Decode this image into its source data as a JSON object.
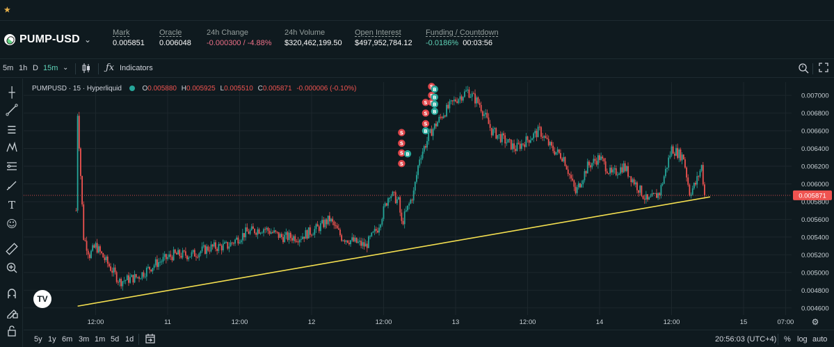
{
  "topbar": {
    "favorites_icon": "star-icon"
  },
  "market": {
    "coin": "PUMP-USD",
    "stats": [
      {
        "label": "Mark",
        "value": "0.005851",
        "tone": "normal"
      },
      {
        "label": "Oracle",
        "value": "0.006048",
        "tone": "normal"
      },
      {
        "label": "24h Change",
        "value": "-0.000300 / -4.88%",
        "tone": "neg"
      },
      {
        "label": "24h Volume",
        "value": "$320,462,199.50",
        "tone": "normal"
      },
      {
        "label": "Open Interest",
        "value": "$497,952,784.12",
        "tone": "normal"
      },
      {
        "label": "Funding / Countdown",
        "value": "-0.0186%",
        "value2": "00:03:56",
        "tone": "pos"
      }
    ]
  },
  "toolbar": {
    "timeframes": [
      "5m",
      "1h",
      "D",
      "15m"
    ],
    "active_timeframe": "15m",
    "indicators_label": "Indicators"
  },
  "legend": {
    "symbol": "PUMPUSD · 15 · Hyperliquid",
    "o_label": "O",
    "o": "0.005880",
    "h_label": "H",
    "h": "0.005925",
    "l_label": "L",
    "l": "0.005510",
    "c_label": "C",
    "c": "0.005871",
    "change": "-0.000006 (-0.10%)"
  },
  "chart_data": {
    "type": "candlestick",
    "x_tick_labels": [
      "12:00",
      "11",
      "12:00",
      "12",
      "12:00",
      "13",
      "12:00",
      "14",
      "12:00",
      "15",
      "07:00"
    ],
    "y_tick_labels": [
      "0.007000",
      "0.006800",
      "0.006600",
      "0.006400",
      "0.006200",
      "0.006000",
      "0.005800",
      "0.005600",
      "0.005400",
      "0.005200",
      "0.005000",
      "0.004800",
      "0.004600"
    ],
    "ylim": [
      0.00452,
      0.00715
    ],
    "last_price": "0.005871",
    "trendline": {
      "from": [
        "10 09:00",
        0.00462
      ],
      "to": [
        "14 17:30",
        0.005842
      ]
    },
    "close_path": [
      [
        "10 08:45",
        0.0057
      ],
      [
        "10 09:00",
        0.0068
      ],
      [
        "10 10:00",
        0.0054
      ],
      [
        "10 11:00",
        0.0052
      ],
      [
        "10 12:00",
        0.0053
      ],
      [
        "10 14:00",
        0.0051
      ],
      [
        "10 16:00",
        0.0049
      ],
      [
        "10 19:00",
        0.00495
      ],
      [
        "10 22:00",
        0.0051
      ],
      [
        "11 01:00",
        0.0052
      ],
      [
        "11 04:00",
        0.0052
      ],
      [
        "11 07:00",
        0.00528
      ],
      [
        "11 10:00",
        0.0053
      ],
      [
        "11 13:00",
        0.00545
      ],
      [
        "11 16:00",
        0.0055
      ],
      [
        "11 19:00",
        0.0054
      ],
      [
        "11 22:00",
        0.0054
      ],
      [
        "12 01:00",
        0.0055
      ],
      [
        "12 03:00",
        0.0056
      ],
      [
        "12 05:00",
        0.0054
      ],
      [
        "12 07:00",
        0.00535
      ],
      [
        "12 09:00",
        0.0053
      ],
      [
        "12 11:00",
        0.0055
      ],
      [
        "12 13:00",
        0.0059
      ],
      [
        "12 14:30",
        0.0058
      ],
      [
        "12 15:00",
        0.00555
      ],
      [
        "12 17:00",
        0.0059
      ],
      [
        "12 18:00",
        0.0063
      ],
      [
        "12 20:00",
        0.0066
      ],
      [
        "12 22:00",
        0.0068
      ],
      [
        "13 00:00",
        0.00695
      ],
      [
        "13 02:00",
        0.00705
      ],
      [
        "13 04:00",
        0.0069
      ],
      [
        "13 06:00",
        0.0066
      ],
      [
        "13 08:00",
        0.0065
      ],
      [
        "13 10:00",
        0.0064
      ],
      [
        "13 12:00",
        0.0065
      ],
      [
        "13 14:00",
        0.0066
      ],
      [
        "13 16:00",
        0.0064
      ],
      [
        "13 18:00",
        0.0063
      ],
      [
        "13 20:00",
        0.0059
      ],
      [
        "13 22:00",
        0.0062
      ],
      [
        "14 00:00",
        0.0063
      ],
      [
        "14 02:00",
        0.0061
      ],
      [
        "14 04:00",
        0.0062
      ],
      [
        "14 06:00",
        0.006
      ],
      [
        "14 08:00",
        0.0058
      ],
      [
        "14 10:00",
        0.0059
      ],
      [
        "14 12:00",
        0.0064
      ],
      [
        "14 14:00",
        0.0063
      ],
      [
        "14 15:00",
        0.0059
      ],
      [
        "14 16:00",
        0.006
      ],
      [
        "14 17:00",
        0.0062
      ],
      [
        "14 17:30",
        0.005871
      ]
    ],
    "trade_markers": [
      {
        "side": "S",
        "time": "12 15:00",
        "price": 0.00658
      },
      {
        "side": "S",
        "time": "12 15:00",
        "price": 0.00646
      },
      {
        "side": "S",
        "time": "12 15:00",
        "price": 0.00635
      },
      {
        "side": "S",
        "time": "12 15:00",
        "price": 0.00623
      },
      {
        "side": "B",
        "time": "12 16:00",
        "price": 0.00634
      },
      {
        "side": "S",
        "time": "12 19:00",
        "price": 0.00692
      },
      {
        "side": "S",
        "time": "12 19:00",
        "price": 0.0068
      },
      {
        "side": "S",
        "time": "12 19:00",
        "price": 0.00668
      },
      {
        "side": "B",
        "time": "12 19:00",
        "price": 0.0066
      },
      {
        "side": "S",
        "time": "12 20:00",
        "price": 0.0071
      },
      {
        "side": "S",
        "time": "12 20:00",
        "price": 0.007
      },
      {
        "side": "S",
        "time": "12 20:00",
        "price": 0.00692
      },
      {
        "side": "B",
        "time": "12 20:30",
        "price": 0.00707
      },
      {
        "side": "B",
        "time": "12 20:30",
        "price": 0.00698
      },
      {
        "side": "B",
        "time": "12 20:30",
        "price": 0.0069
      },
      {
        "side": "B",
        "time": "12 20:30",
        "price": 0.00682
      }
    ],
    "grid": true,
    "colors": {
      "up": "#26a69a",
      "down": "#ef5350",
      "trendline": "#f5e050",
      "last_price_tag": "#ef5350"
    }
  },
  "bottombar": {
    "ranges": [
      "5y",
      "1y",
      "6m",
      "3m",
      "1m",
      "5d",
      "1d"
    ],
    "clock": "20:56:03 (UTC+4)",
    "pct": "%",
    "log": "log",
    "auto": "auto"
  },
  "tv_logo_text": "TV"
}
